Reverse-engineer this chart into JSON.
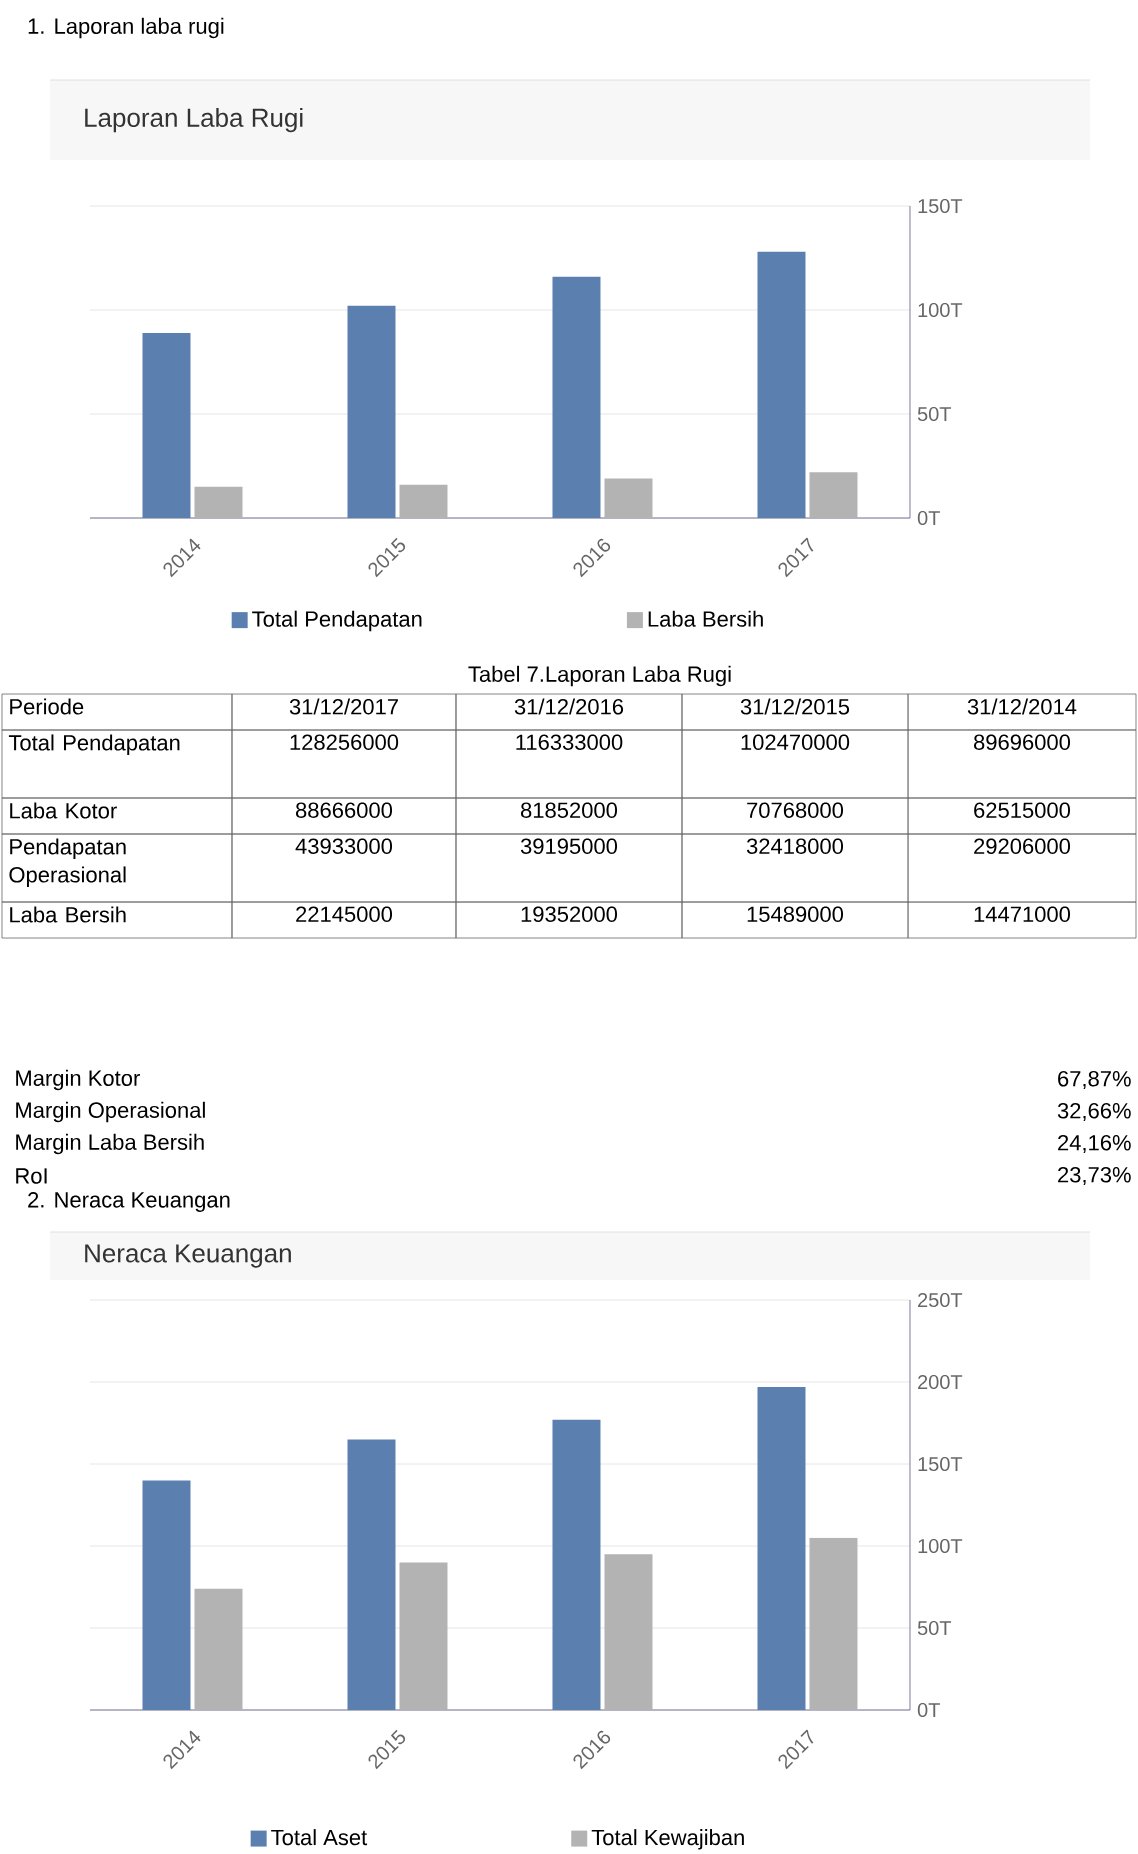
{
  "chart_data": [
    {
      "type": "bar",
      "title": "Laporan Laba Rugi",
      "annotations": [
        "1.  Laporan laba rugi"
      ],
      "categories": [
        "2014",
        "2015",
        "2016",
        "2017"
      ],
      "series": [
        {
          "name": "Total Pendapatan",
          "color": "#5b80b0",
          "values": [
            89,
            102,
            116,
            128
          ]
        },
        {
          "name": "Laba Bersih",
          "color": "#b3b3b3",
          "values": [
            15,
            16,
            19,
            22
          ]
        }
      ],
      "ylim": [
        0,
        150
      ],
      "yticks": [
        {
          "value": 0,
          "label": "0T"
        },
        {
          "value": 50,
          "label": "50T"
        },
        {
          "value": 100,
          "label": "100T"
        },
        {
          "value": 150,
          "label": "150T"
        }
      ],
      "grid": "y",
      "legend": "bottom"
    },
    {
      "type": "other",
      "title": "Tabel 7.Laporan Laba Rugi",
      "annotations": [
        "Periode",
        "31/12/2017",
        "31/12/2016",
        "31/12/2015",
        "31/12/2014",
        "Total Pendapatan",
        "128256000",
        "116333000",
        "102470000",
        "89696000",
        "Laba Kotor",
        "88666000",
        "81852000",
        "70768000",
        "62515000",
        "Pendapatan Operasional",
        "43933000",
        "39195000",
        "32418000",
        "29206000",
        "Laba Bersih",
        "22145000",
        "19352000",
        "15489000",
        "14471000"
      ]
    },
    {
      "type": "other",
      "annotations": [
        "Margin Kotor",
        "67,87%",
        "Margin Operasional",
        "32,66%",
        "Margin Laba Bersih",
        "24,16%",
        "RoI",
        "23,73%"
      ]
    },
    {
      "type": "bar",
      "title": "Neraca Keuangan",
      "annotations": [
        "2.  Neraca Keuangan"
      ],
      "categories": [
        "2014",
        "2015",
        "2016",
        "2017"
      ],
      "series": [
        {
          "name": "Total Aset",
          "color": "#5b80b0",
          "values": [
            140,
            165,
            177,
            197
          ]
        },
        {
          "name": "Total Kewajiban",
          "color": "#b3b3b3",
          "values": [
            74,
            90,
            95,
            105
          ]
        }
      ],
      "ylim": [
        0,
        250
      ],
      "yticks": [
        {
          "value": 0,
          "label": "0T"
        },
        {
          "value": 50,
          "label": "50T"
        },
        {
          "value": 100,
          "label": "100T"
        },
        {
          "value": 150,
          "label": "150T"
        },
        {
          "value": 200,
          "label": "200T"
        },
        {
          "value": 250,
          "label": "250T"
        }
      ],
      "grid": "y",
      "legend": "bottom"
    }
  ]
}
